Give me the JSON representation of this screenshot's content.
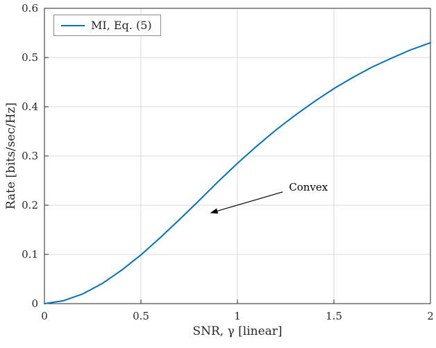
{
  "chart_data": {
    "type": "line",
    "title": "",
    "xlabel": "SNR, γ [linear]",
    "ylabel": "Rate [bits/sec/Hz]",
    "xlim": [
      0,
      2
    ],
    "ylim": [
      0,
      0.6
    ],
    "xticks": [
      0,
      0.5,
      1,
      1.5,
      2
    ],
    "xtick_labels": [
      "0",
      "0.5",
      "1",
      "1.5",
      "2"
    ],
    "yticks": [
      0,
      0.1,
      0.2,
      0.3,
      0.4,
      0.5,
      0.6
    ],
    "ytick_labels": [
      "0",
      "0.1",
      "0.2",
      "0.3",
      "0.4",
      "0.5",
      "0.6"
    ],
    "grid": true,
    "legend_position": "top-left",
    "x": [
      0,
      0.1,
      0.2,
      0.3,
      0.4,
      0.5,
      0.6,
      0.7,
      0.8,
      0.9,
      1.0,
      1.1,
      1.2,
      1.3,
      1.4,
      1.5,
      1.6,
      1.7,
      1.8,
      1.9,
      2.0
    ],
    "series": [
      {
        "name": "MI, Eq. (5)",
        "color": "#0072BD",
        "values": [
          0,
          0.006,
          0.02,
          0.041,
          0.068,
          0.099,
          0.134,
          0.171,
          0.209,
          0.248,
          0.285,
          0.32,
          0.353,
          0.383,
          0.411,
          0.437,
          0.46,
          0.481,
          0.499,
          0.516,
          0.53
        ]
      }
    ],
    "annotation": {
      "text": "Convex",
      "label_pos": [
        1.26,
        0.236
      ],
      "arrow_start": [
        1.235,
        0.227
      ],
      "arrow_end": [
        0.858,
        0.184
      ]
    },
    "colors": {
      "line": "#0072BD",
      "grid": "#d9d9d9",
      "axis": "#262626",
      "annotation": "#000000"
    }
  }
}
